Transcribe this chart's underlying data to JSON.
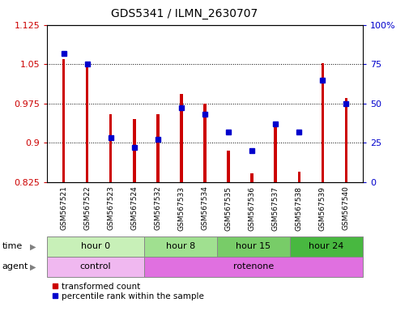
{
  "title": "GDS5341 / ILMN_2630707",
  "samples": [
    "GSM567521",
    "GSM567522",
    "GSM567523",
    "GSM567524",
    "GSM567532",
    "GSM567533",
    "GSM567534",
    "GSM567535",
    "GSM567536",
    "GSM567537",
    "GSM567538",
    "GSM567539",
    "GSM567540"
  ],
  "red_values": [
    1.06,
    1.045,
    0.955,
    0.945,
    0.955,
    0.993,
    0.975,
    0.885,
    0.842,
    0.935,
    0.845,
    1.052,
    0.985
  ],
  "blue_values": [
    82,
    75,
    28,
    22,
    27,
    47,
    43,
    32,
    20,
    37,
    32,
    65,
    50
  ],
  "ylim_left": [
    0.825,
    1.125
  ],
  "ylim_right": [
    0,
    100
  ],
  "yticks_left": [
    0.825,
    0.9,
    0.975,
    1.05,
    1.125
  ],
  "yticks_right": [
    0,
    25,
    50,
    75,
    100
  ],
  "base_value": 0.825,
  "grid_values": [
    0.9,
    0.975,
    1.05
  ],
  "time_groups": [
    {
      "label": "hour 0",
      "start": 0,
      "end": 4,
      "color": "#c8f0b8"
    },
    {
      "label": "hour 8",
      "start": 4,
      "end": 7,
      "color": "#a0e090"
    },
    {
      "label": "hour 15",
      "start": 7,
      "end": 10,
      "color": "#78cc68"
    },
    {
      "label": "hour 24",
      "start": 10,
      "end": 13,
      "color": "#48b840"
    }
  ],
  "agent_groups": [
    {
      "label": "control",
      "start": 0,
      "end": 4,
      "color": "#f0b8f0"
    },
    {
      "label": "rotenone",
      "start": 4,
      "end": 13,
      "color": "#e070e0"
    }
  ],
  "legend_red": "transformed count",
  "legend_blue": "percentile rank within the sample",
  "bar_width": 0.12,
  "bar_color": "#cc0000",
  "dot_color": "#0000cc",
  "background_color": "#ffffff",
  "plot_bg": "#ffffff",
  "ylabel_left_color": "#cc0000",
  "ylabel_right_color": "#0000cc",
  "tick_fontsize": 8,
  "label_fontsize": 8,
  "title_fontsize": 10
}
